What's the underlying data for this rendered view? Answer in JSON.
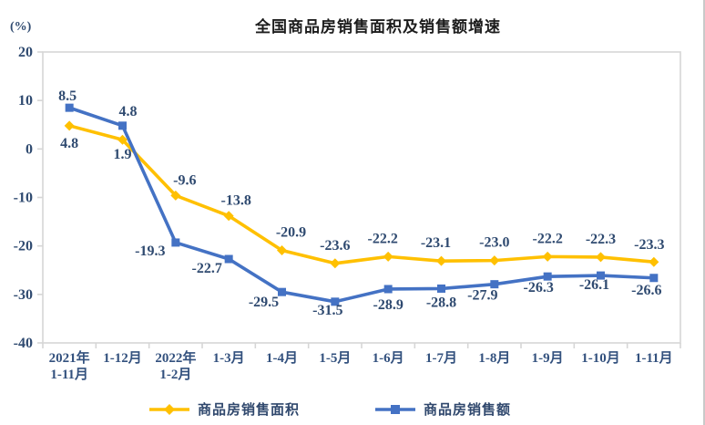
{
  "chart_data": {
    "type": "line",
    "title": "全国商品房销售面积及销售额增速",
    "unit_label": "(%)",
    "categories": [
      "2021年\n1-11月",
      "1-12月",
      "2022年\n1-2月",
      "1-3月",
      "1-4月",
      "1-5月",
      "1-6月",
      "1-7月",
      "1-8月",
      "1-9月",
      "1-10月",
      "1-11月"
    ],
    "series": [
      {
        "name": "商品房销售面积",
        "color": "#FFC000",
        "marker": "diamond",
        "values": [
          4.8,
          1.9,
          -9.6,
          -13.8,
          -20.9,
          -23.6,
          -22.2,
          -23.1,
          -23.0,
          -22.2,
          -22.3,
          -23.3
        ]
      },
      {
        "name": "商品房销售额",
        "color": "#4472C4",
        "marker": "square",
        "values": [
          8.5,
          4.8,
          -19.3,
          -22.7,
          -29.5,
          -31.5,
          -28.9,
          -28.8,
          -27.9,
          -26.3,
          -26.1,
          -26.6
        ]
      }
    ],
    "ylim": [
      -40,
      20
    ],
    "ytick_step": 10,
    "yticks": [
      20,
      10,
      0,
      -10,
      -20,
      -30,
      -40
    ],
    "grid": false,
    "legend_position": "bottom",
    "axis_color": "#d6d6d6",
    "text_color": "#2f4a70",
    "title_color": "#1c1c1c"
  }
}
